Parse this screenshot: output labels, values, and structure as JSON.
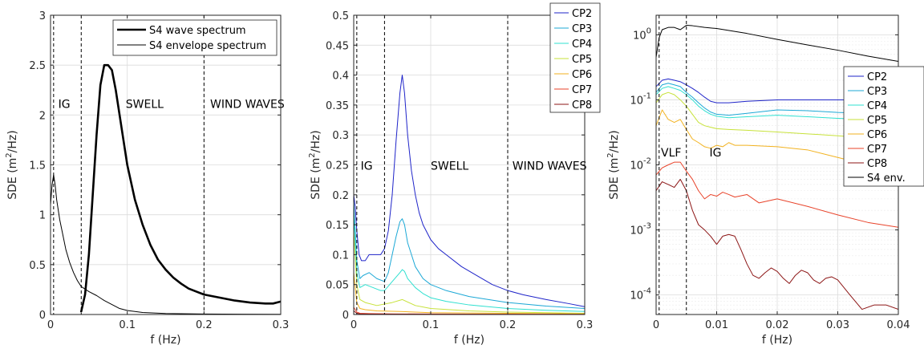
{
  "chart_data": [
    {
      "type": "line",
      "xlabel": "f (Hz)",
      "ylabel": "SDE (m²/Hz)",
      "ylabel_base": "SDE (m",
      "ylabel_sup": "2",
      "ylabel_tail": "/Hz)",
      "xlim": [
        0,
        0.3
      ],
      "ylim": [
        0,
        3
      ],
      "yscale": "linear",
      "grid": true,
      "x_ticks": [
        0,
        0.1,
        0.2,
        0.3
      ],
      "x_tick_labels": [
        "0",
        "0.1",
        "0.2",
        "0.3"
      ],
      "y_ticks": [
        0,
        0.5,
        1,
        1.5,
        2,
        2.5,
        3
      ],
      "y_tick_labels": [
        "0",
        "0.5",
        "1",
        "1.5",
        "2",
        "2.5",
        "3"
      ],
      "vlines": [
        0.004,
        0.04,
        0.2
      ],
      "annotations": [
        {
          "text": "IG",
          "x": 0.01,
          "y": 2.07
        },
        {
          "text": "SWELL",
          "x": 0.098,
          "y": 2.07
        },
        {
          "text": "WIND WAVES",
          "x": 0.208,
          "y": 2.07
        }
      ],
      "legend": "top-right",
      "series": [
        {
          "name": "S4 wave spectrum",
          "color": "#000000",
          "width": 2.6,
          "x": [
            0.04,
            0.045,
            0.05,
            0.055,
            0.06,
            0.065,
            0.07,
            0.075,
            0.08,
            0.085,
            0.09,
            0.095,
            0.1,
            0.11,
            0.12,
            0.13,
            0.14,
            0.15,
            0.16,
            0.17,
            0.18,
            0.19,
            0.2,
            0.22,
            0.24,
            0.26,
            0.28,
            0.29,
            0.3
          ],
          "y": [
            0.03,
            0.2,
            0.6,
            1.2,
            1.8,
            2.3,
            2.5,
            2.5,
            2.45,
            2.25,
            2.0,
            1.75,
            1.5,
            1.15,
            0.9,
            0.7,
            0.55,
            0.45,
            0.37,
            0.31,
            0.26,
            0.23,
            0.2,
            0.17,
            0.14,
            0.12,
            0.11,
            0.11,
            0.13
          ]
        },
        {
          "name": "S4 envelope spectrum",
          "color": "#000000",
          "width": 1.0,
          "x": [
            0,
            0.002,
            0.004,
            0.006,
            0.008,
            0.012,
            0.016,
            0.02,
            0.025,
            0.03,
            0.035,
            0.04,
            0.05,
            0.06,
            0.07,
            0.08,
            0.09,
            0.1,
            0.12,
            0.15,
            0.2,
            0.25,
            0.3
          ],
          "y": [
            1.1,
            1.3,
            1.4,
            1.3,
            1.15,
            0.95,
            0.8,
            0.65,
            0.52,
            0.42,
            0.34,
            0.28,
            0.23,
            0.19,
            0.14,
            0.1,
            0.06,
            0.04,
            0.02,
            0.01,
            0.005,
            0.003,
            0.002
          ]
        }
      ]
    },
    {
      "type": "line",
      "xlabel": "f (Hz)",
      "ylabel": "SDE (m²/Hz)",
      "ylabel_base": "SDE (m",
      "ylabel_sup": "2",
      "ylabel_tail": "/Hz)",
      "xlim": [
        0,
        0.3
      ],
      "ylim": [
        0,
        0.5
      ],
      "yscale": "linear",
      "grid": true,
      "x_ticks": [
        0,
        0.1,
        0.2,
        0.3
      ],
      "x_tick_labels": [
        "0",
        "0.1",
        "0.2",
        "0.3"
      ],
      "y_ticks": [
        0,
        0.05,
        0.1,
        0.15,
        0.2,
        0.25,
        0.3,
        0.35,
        0.4,
        0.45,
        0.5
      ],
      "y_tick_labels": [
        "0",
        "0.05",
        "0.1",
        "0.15",
        "0.2",
        "0.25",
        "0.3",
        "0.35",
        "0.4",
        "0.45",
        "0.5"
      ],
      "vlines": [
        0.004,
        0.04,
        0.2
      ],
      "annotations": [
        {
          "text": "IG",
          "x": 0.009,
          "y": 0.242
        },
        {
          "text": "SWELL",
          "x": 0.1,
          "y": 0.242
        },
        {
          "text": "WIND WAVES",
          "x": 0.206,
          "y": 0.242
        }
      ],
      "legend": "top-right",
      "series": [
        {
          "name": "CP2",
          "color": "#1f24c9",
          "width": 1.0,
          "x": [
            0,
            0.002,
            0.004,
            0.007,
            0.01,
            0.015,
            0.02,
            0.025,
            0.03,
            0.035,
            0.04,
            0.045,
            0.05,
            0.055,
            0.06,
            0.063,
            0.066,
            0.07,
            0.075,
            0.08,
            0.085,
            0.09,
            0.1,
            0.11,
            0.12,
            0.14,
            0.16,
            0.18,
            0.2,
            0.22,
            0.25,
            0.28,
            0.3
          ],
          "y": [
            0.2,
            0.18,
            0.14,
            0.1,
            0.09,
            0.09,
            0.1,
            0.1,
            0.1,
            0.1,
            0.11,
            0.14,
            0.2,
            0.29,
            0.37,
            0.4,
            0.37,
            0.3,
            0.24,
            0.2,
            0.17,
            0.15,
            0.125,
            0.11,
            0.1,
            0.08,
            0.065,
            0.05,
            0.04,
            0.033,
            0.025,
            0.018,
            0.013
          ]
        },
        {
          "name": "CP3",
          "color": "#1ca8d6",
          "width": 1.0,
          "x": [
            0,
            0.004,
            0.008,
            0.012,
            0.02,
            0.03,
            0.04,
            0.045,
            0.05,
            0.055,
            0.06,
            0.063,
            0.066,
            0.07,
            0.075,
            0.08,
            0.09,
            0.1,
            0.12,
            0.15,
            0.2,
            0.25,
            0.3
          ],
          "y": [
            0.19,
            0.09,
            0.06,
            0.065,
            0.07,
            0.06,
            0.055,
            0.07,
            0.1,
            0.13,
            0.155,
            0.16,
            0.15,
            0.12,
            0.1,
            0.08,
            0.06,
            0.05,
            0.04,
            0.03,
            0.02,
            0.014,
            0.01
          ]
        },
        {
          "name": "CP4",
          "color": "#2fe0d0",
          "width": 1.0,
          "x": [
            0,
            0.004,
            0.008,
            0.015,
            0.025,
            0.035,
            0.04,
            0.05,
            0.06,
            0.063,
            0.066,
            0.07,
            0.08,
            0.09,
            0.1,
            0.12,
            0.15,
            0.2,
            0.25,
            0.3
          ],
          "y": [
            0.17,
            0.07,
            0.045,
            0.05,
            0.045,
            0.04,
            0.04,
            0.055,
            0.07,
            0.075,
            0.072,
            0.06,
            0.045,
            0.035,
            0.028,
            0.022,
            0.016,
            0.01,
            0.007,
            0.005
          ]
        },
        {
          "name": "CP5",
          "color": "#c7e23a",
          "width": 1.0,
          "x": [
            0,
            0.004,
            0.008,
            0.015,
            0.03,
            0.05,
            0.063,
            0.08,
            0.1,
            0.15,
            0.2,
            0.3
          ],
          "y": [
            0.14,
            0.05,
            0.025,
            0.02,
            0.015,
            0.02,
            0.025,
            0.015,
            0.01,
            0.006,
            0.004,
            0.002
          ]
        },
        {
          "name": "CP6",
          "color": "#f2b21f",
          "width": 1.0,
          "x": [
            0,
            0.004,
            0.008,
            0.015,
            0.03,
            0.06,
            0.1,
            0.2,
            0.3
          ],
          "y": [
            0.07,
            0.02,
            0.01,
            0.008,
            0.006,
            0.005,
            0.003,
            0.002,
            0.001
          ]
        },
        {
          "name": "CP7",
          "color": "#e8432a",
          "width": 1.0,
          "x": [
            0,
            0.004,
            0.008,
            0.02,
            0.05,
            0.1,
            0.2,
            0.3
          ],
          "y": [
            0.012,
            0.004,
            0.002,
            0.0015,
            0.001,
            0.0008,
            0.0005,
            0.0003
          ]
        },
        {
          "name": "CP8",
          "color": "#8c1515",
          "width": 1.0,
          "x": [
            0,
            0.004,
            0.008,
            0.02,
            0.05,
            0.1,
            0.2,
            0.3
          ],
          "y": [
            0.006,
            0.002,
            0.001,
            0.0007,
            0.0005,
            0.0004,
            0.0002,
            0.0001
          ]
        }
      ]
    },
    {
      "type": "line",
      "xlabel": "f (Hz)",
      "ylabel": "SDE (m²/Hz)",
      "ylabel_base": "SDE (m",
      "ylabel_sup": "2",
      "ylabel_tail": "/Hz)",
      "xlim": [
        0,
        0.04
      ],
      "ylim": [
        5e-05,
        2
      ],
      "yscale": "log",
      "grid": true,
      "x_ticks": [
        0,
        0.01,
        0.02,
        0.03,
        0.04
      ],
      "x_tick_labels": [
        "0",
        "0.01",
        "0.02",
        "0.03",
        "0.04"
      ],
      "y_ticks": [
        0.0001,
        0.001,
        0.01,
        0.1,
        1
      ],
      "y_tick_labels": [
        {
          "base": "10",
          "exp": "-4"
        },
        {
          "base": "10",
          "exp": "-3"
        },
        {
          "base": "10",
          "exp": "-2"
        },
        {
          "base": "10",
          "exp": "-1"
        },
        {
          "base": "10",
          "exp": "0"
        }
      ],
      "vlines": [
        0.0005,
        0.005
      ],
      "annotations": [
        {
          "text": "VLF",
          "x": 0.0008,
          "y": 0.0135
        },
        {
          "text": "IG",
          "x": 0.0088,
          "y": 0.0135
        }
      ],
      "legend": "right",
      "series": [
        {
          "name": "CP2",
          "color": "#1f24c9",
          "width": 1.0,
          "x": [
            0,
            0.001,
            0.002,
            0.003,
            0.004,
            0.005,
            0.006,
            0.007,
            0.008,
            0.009,
            0.01,
            0.012,
            0.015,
            0.02,
            0.025,
            0.03,
            0.035,
            0.04
          ],
          "y": [
            0.16,
            0.2,
            0.21,
            0.2,
            0.19,
            0.17,
            0.15,
            0.13,
            0.11,
            0.095,
            0.09,
            0.09,
            0.095,
            0.1,
            0.1,
            0.1,
            0.1,
            0.1
          ]
        },
        {
          "name": "CP3",
          "color": "#1ca8d6",
          "width": 1.0,
          "x": [
            0,
            0.001,
            0.002,
            0.003,
            0.004,
            0.005,
            0.006,
            0.007,
            0.008,
            0.009,
            0.01,
            0.012,
            0.015,
            0.02,
            0.025,
            0.03,
            0.035,
            0.04
          ],
          "y": [
            0.13,
            0.17,
            0.18,
            0.17,
            0.16,
            0.13,
            0.11,
            0.09,
            0.075,
            0.065,
            0.06,
            0.058,
            0.062,
            0.07,
            0.068,
            0.064,
            0.062,
            0.06
          ]
        },
        {
          "name": "CP4",
          "color": "#2fe0d0",
          "width": 1.0,
          "x": [
            0,
            0.001,
            0.002,
            0.003,
            0.004,
            0.005,
            0.006,
            0.007,
            0.008,
            0.009,
            0.01,
            0.012,
            0.015,
            0.02,
            0.025,
            0.03,
            0.035,
            0.04
          ],
          "y": [
            0.12,
            0.15,
            0.16,
            0.15,
            0.14,
            0.12,
            0.1,
            0.08,
            0.068,
            0.06,
            0.056,
            0.053,
            0.055,
            0.058,
            0.055,
            0.052,
            0.05,
            0.048
          ]
        },
        {
          "name": "CP5",
          "color": "#c7e23a",
          "width": 1.0,
          "x": [
            0,
            0.001,
            0.002,
            0.003,
            0.004,
            0.005,
            0.006,
            0.007,
            0.008,
            0.01,
            0.012,
            0.015,
            0.02,
            0.025,
            0.03,
            0.035,
            0.04
          ],
          "y": [
            0.09,
            0.12,
            0.13,
            0.12,
            0.1,
            0.08,
            0.06,
            0.045,
            0.04,
            0.036,
            0.035,
            0.034,
            0.032,
            0.03,
            0.028,
            0.026,
            0.024
          ]
        },
        {
          "name": "CP6",
          "color": "#f2b21f",
          "width": 1.0,
          "x": [
            0,
            0.001,
            0.002,
            0.003,
            0.004,
            0.005,
            0.006,
            0.007,
            0.008,
            0.009,
            0.01,
            0.011,
            0.012,
            0.013,
            0.015,
            0.02,
            0.025,
            0.03,
            0.035,
            0.04
          ],
          "y": [
            0.04,
            0.07,
            0.05,
            0.045,
            0.05,
            0.035,
            0.025,
            0.022,
            0.019,
            0.018,
            0.02,
            0.019,
            0.022,
            0.02,
            0.02,
            0.019,
            0.017,
            0.013,
            0.01,
            0.008
          ]
        },
        {
          "name": "CP7",
          "color": "#e8432a",
          "width": 1.0,
          "x": [
            0,
            0.001,
            0.002,
            0.003,
            0.004,
            0.005,
            0.006,
            0.007,
            0.008,
            0.009,
            0.01,
            0.011,
            0.012,
            0.013,
            0.015,
            0.017,
            0.02,
            0.025,
            0.03,
            0.035,
            0.04
          ],
          "y": [
            0.007,
            0.009,
            0.01,
            0.011,
            0.011,
            0.008,
            0.006,
            0.004,
            0.003,
            0.0035,
            0.0033,
            0.0038,
            0.0035,
            0.0032,
            0.0035,
            0.0026,
            0.003,
            0.0023,
            0.0017,
            0.0013,
            0.0011
          ]
        },
        {
          "name": "CP8",
          "color": "#8c1515",
          "width": 1.0,
          "x": [
            0,
            0.001,
            0.002,
            0.003,
            0.004,
            0.005,
            0.006,
            0.007,
            0.008,
            0.009,
            0.01,
            0.011,
            0.012,
            0.013,
            0.014,
            0.015,
            0.016,
            0.017,
            0.018,
            0.019,
            0.02,
            0.021,
            0.022,
            0.023,
            0.024,
            0.025,
            0.026,
            0.027,
            0.028,
            0.029,
            0.03,
            0.032,
            0.034,
            0.036,
            0.038,
            0.04
          ],
          "y": [
            0.004,
            0.0055,
            0.005,
            0.0045,
            0.006,
            0.004,
            0.002,
            0.0012,
            0.001,
            0.0008,
            0.0006,
            0.0008,
            0.00085,
            0.0008,
            0.0005,
            0.0003,
            0.0002,
            0.00018,
            0.00022,
            0.00026,
            0.00023,
            0.00018,
            0.00015,
            0.0002,
            0.00024,
            0.00022,
            0.00017,
            0.00015,
            0.00018,
            0.00019,
            0.00017,
            0.0001,
            6e-05,
            7e-05,
            7e-05,
            6e-05
          ]
        },
        {
          "name": "S4 env.",
          "color": "#000000",
          "width": 1.0,
          "x": [
            0,
            0.0005,
            0.001,
            0.002,
            0.003,
            0.004,
            0.005,
            0.006,
            0.008,
            0.01,
            0.015,
            0.02,
            0.025,
            0.03,
            0.035,
            0.04
          ],
          "y": [
            0.45,
            0.9,
            1.2,
            1.3,
            1.3,
            1.2,
            1.4,
            1.38,
            1.3,
            1.25,
            1.05,
            0.85,
            0.7,
            0.58,
            0.47,
            0.39
          ]
        }
      ]
    }
  ]
}
